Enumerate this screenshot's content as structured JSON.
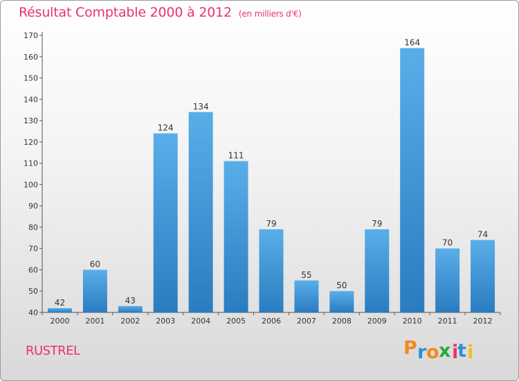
{
  "chart_data": {
    "type": "bar",
    "title": "Résultat Comptable 2000 à 2012",
    "subtitle": "(en milliers d'€)",
    "categories": [
      "2000",
      "2001",
      "2002",
      "2003",
      "2004",
      "2005",
      "2006",
      "2007",
      "2008",
      "2009",
      "2010",
      "2011",
      "2012"
    ],
    "values": [
      42,
      60,
      43,
      124,
      134,
      111,
      79,
      55,
      50,
      79,
      164,
      70,
      74
    ],
    "ylim": [
      40,
      170
    ],
    "yticks": [
      40,
      50,
      60,
      70,
      80,
      90,
      100,
      110,
      120,
      130,
      140,
      150,
      160,
      170
    ],
    "xlabel": "",
    "ylabel": "",
    "grid": false
  },
  "commune": "RUSTREL",
  "logo": {
    "text": "Proxiti",
    "letters": [
      {
        "char": "P",
        "color": "#f28a1a"
      },
      {
        "char": "r",
        "color": "#2b8fd6"
      },
      {
        "char": "o",
        "color": "#f28a1a"
      },
      {
        "char": "x",
        "color": "#27a83a"
      },
      {
        "char": "i",
        "color": "#e8336b"
      },
      {
        "char": "t",
        "color": "#2b8fd6"
      },
      {
        "char": "i",
        "color": "#f2c01a"
      }
    ]
  },
  "colors": {
    "bar_top": "#5aaee8",
    "bar_bottom": "#2a7cc0",
    "title": "#e8336b"
  }
}
